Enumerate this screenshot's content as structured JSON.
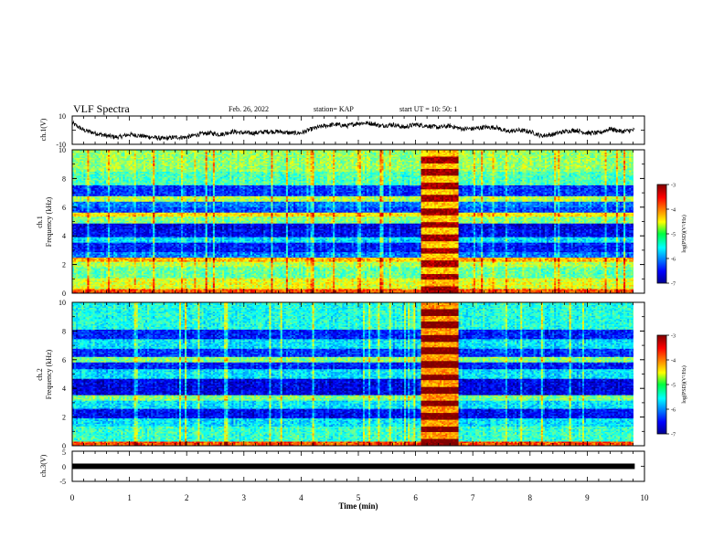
{
  "header": {
    "title": "VLF Spectra",
    "date": "Feb. 26, 2022",
    "station": "station= KAP",
    "start_ut": "start  UT  =   10: 50: 1"
  },
  "chart_data": [
    {
      "type": "line",
      "panel": "ch1-waveform",
      "ylabel": "ch.1(V)",
      "ylim": [
        -10,
        10
      ],
      "ytick_labels": [
        "10",
        "-10"
      ],
      "x": [
        0,
        0.2,
        0.4,
        0.6,
        0.8,
        1.0,
        1.2,
        1.4,
        1.6,
        1.8,
        2.0,
        2.2,
        2.4,
        2.6,
        2.8,
        3.0,
        3.2,
        3.4,
        3.6,
        3.8,
        4.0,
        4.2,
        4.4,
        4.6,
        4.8,
        5.0,
        5.2,
        5.4,
        5.6,
        5.8,
        6.0,
        6.2,
        6.4,
        6.6,
        6.8,
        7.0,
        7.2,
        7.4,
        7.6,
        7.8,
        8.0,
        8.2,
        8.4,
        8.6,
        8.8,
        9.0,
        9.2,
        9.4,
        9.6,
        9.8
      ],
      "y": [
        5,
        0,
        -2,
        -4,
        -5,
        -3,
        -4,
        -5,
        -6,
        -5,
        -5,
        -3,
        -2,
        -3,
        -1,
        -2,
        -2,
        -1,
        -1,
        -2,
        -2,
        1,
        3,
        4,
        3,
        5,
        5,
        3,
        4,
        2,
        4,
        3,
        2,
        3,
        1,
        1,
        2,
        2,
        -1,
        0,
        -1,
        -4,
        -3,
        -1,
        0,
        -2,
        -2,
        1,
        -1,
        0
      ],
      "xlim": [
        0,
        9.83
      ]
    },
    {
      "type": "heatmap",
      "panel": "ch1-spectrogram",
      "ylabel": "ch.1\nFrequency (kHz)",
      "ylim": [
        0,
        10
      ],
      "ytick_labels": [
        "0",
        "2",
        "4",
        "6",
        "8",
        "10"
      ],
      "xlim": [
        0,
        9.83
      ],
      "freq_bands_khz": [
        {
          "range": [
            0.0,
            0.3
          ],
          "log_psd": -3.8
        },
        {
          "range": [
            0.3,
            1.0
          ],
          "log_psd": -4.6
        },
        {
          "range": [
            1.0,
            1.8
          ],
          "log_psd": -5.1
        },
        {
          "range": [
            1.8,
            2.2
          ],
          "log_psd": -4.8
        },
        {
          "range": [
            2.2,
            2.5
          ],
          "log_psd": -4.2
        },
        {
          "range": [
            2.5,
            2.9
          ],
          "log_psd": -6.0
        },
        {
          "range": [
            2.9,
            3.5
          ],
          "log_psd": -6.4
        },
        {
          "range": [
            3.5,
            3.9
          ],
          "log_psd": -5.6
        },
        {
          "range": [
            3.9,
            4.5
          ],
          "log_psd": -6.5
        },
        {
          "range": [
            4.5,
            4.9
          ],
          "log_psd": -6.6
        },
        {
          "range": [
            4.9,
            5.3
          ],
          "log_psd": -5.0
        },
        {
          "range": [
            5.3,
            5.6
          ],
          "log_psd": -4.4
        },
        {
          "range": [
            5.6,
            6.0
          ],
          "log_psd": -6.2
        },
        {
          "range": [
            6.0,
            6.4
          ],
          "log_psd": -6.0
        },
        {
          "range": [
            6.4,
            6.8
          ],
          "log_psd": -4.8
        },
        {
          "range": [
            6.8,
            7.5
          ],
          "log_psd": -6.3
        },
        {
          "range": [
            7.5,
            8.5
          ],
          "log_psd": -5.2
        },
        {
          "range": [
            8.5,
            10.0
          ],
          "log_psd": -4.9
        }
      ],
      "burst": {
        "time_min": [
          6.1,
          6.75
        ],
        "log_psd": -4.0
      }
    },
    {
      "type": "heatmap",
      "panel": "ch2-spectrogram",
      "ylabel": "ch.2\nFrequency (kHz)",
      "ylim": [
        0,
        10
      ],
      "ytick_labels": [
        "0",
        "2",
        "4",
        "6",
        "8",
        "10"
      ],
      "xlim": [
        0,
        9.83
      ],
      "freq_bands_khz": [
        {
          "range": [
            0.0,
            0.3
          ],
          "log_psd": -3.8
        },
        {
          "range": [
            0.3,
            1.3
          ],
          "log_psd": -5.3
        },
        {
          "range": [
            1.3,
            1.9
          ],
          "log_psd": -5.6
        },
        {
          "range": [
            1.9,
            2.6
          ],
          "log_psd": -6.5
        },
        {
          "range": [
            2.6,
            3.1
          ],
          "log_psd": -5.6
        },
        {
          "range": [
            3.1,
            3.5
          ],
          "log_psd": -5.0
        },
        {
          "range": [
            3.5,
            4.7
          ],
          "log_psd": -6.6
        },
        {
          "range": [
            4.7,
            5.3
          ],
          "log_psd": -5.6
        },
        {
          "range": [
            5.3,
            5.8
          ],
          "log_psd": -6.4
        },
        {
          "range": [
            5.8,
            6.2
          ],
          "log_psd": -5.0
        },
        {
          "range": [
            6.2,
            6.8
          ],
          "log_psd": -6.3
        },
        {
          "range": [
            6.8,
            7.4
          ],
          "log_psd": -5.6
        },
        {
          "range": [
            7.4,
            8.1
          ],
          "log_psd": -6.4
        },
        {
          "range": [
            8.1,
            10.0
          ],
          "log_psd": -5.4
        }
      ],
      "burst": {
        "time_min": [
          6.1,
          6.75
        ],
        "log_psd": -3.8
      }
    },
    {
      "type": "line",
      "panel": "ch3-waveform",
      "ylabel": "ch.3(V)",
      "ylim": [
        -5,
        5
      ],
      "ytick_labels": [
        "5",
        "0",
        "-5"
      ],
      "x": [
        0,
        9.83
      ],
      "y": [
        0,
        0
      ],
      "xlabel": "Time  (min)",
      "xlim": [
        0,
        10
      ],
      "xtick_labels": [
        "0",
        "1",
        "2",
        "3",
        "4",
        "5",
        "6",
        "7",
        "8",
        "9",
        "10"
      ]
    }
  ],
  "colorbars": [
    {
      "panel": "ch1-colorbar",
      "range": [
        -7,
        -3
      ],
      "tick_labels": [
        "-3",
        "-4",
        "-5",
        "-6",
        "-7"
      ],
      "label": "log(PSD)(V²/Hz)"
    },
    {
      "panel": "ch2-colorbar",
      "range": [
        -7,
        -3
      ],
      "tick_labels": [
        "-3",
        "-4",
        "-5",
        "-6",
        "-7"
      ],
      "label": "log(PSD)(V²/Hz)"
    }
  ],
  "colors": {
    "low": "#0000c8",
    "mid": "#10d050",
    "high": "#c80000",
    "trace": "#000000"
  }
}
